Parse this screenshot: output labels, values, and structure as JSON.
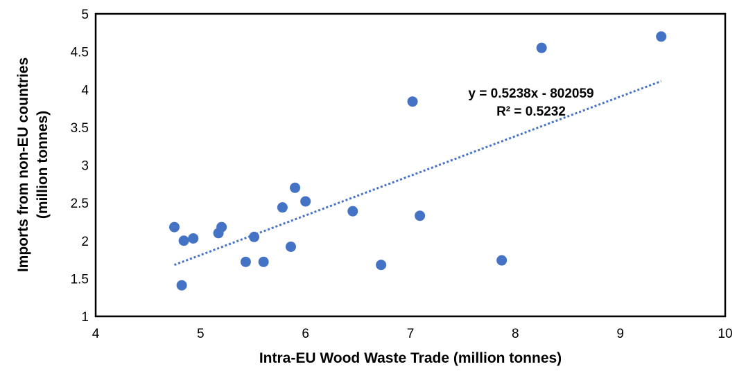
{
  "chart_data": {
    "type": "scatter",
    "title": "",
    "xlabel": "Intra-EU Wood Waste Trade (million tonnes)",
    "ylabel_line1": "Imports from non-EU countries",
    "ylabel_line2": "(million tonnes)",
    "xlim": [
      4,
      10
    ],
    "ylim": [
      1,
      5
    ],
    "xticks": [
      4,
      5,
      6,
      7,
      8,
      9,
      10
    ],
    "yticks": [
      1,
      1.5,
      2,
      2.5,
      3,
      3.5,
      4,
      4.5,
      5
    ],
    "xtick_labels": [
      "4",
      "5",
      "6",
      "7",
      "8",
      "9",
      "10"
    ],
    "ytick_labels": [
      "1",
      "1.5",
      "2",
      "2.5",
      "3",
      "3.5",
      "4",
      "4.5",
      "5"
    ],
    "grid": false,
    "legend": "none",
    "marker_color": "#4472C4",
    "trendline_color": "#4472C4",
    "points": [
      {
        "x": 4.75,
        "y": 2.18
      },
      {
        "x": 4.82,
        "y": 1.41
      },
      {
        "x": 4.84,
        "y": 2.0
      },
      {
        "x": 4.93,
        "y": 2.03
      },
      {
        "x": 5.17,
        "y": 2.1
      },
      {
        "x": 5.2,
        "y": 2.18
      },
      {
        "x": 5.43,
        "y": 1.72
      },
      {
        "x": 5.51,
        "y": 2.05
      },
      {
        "x": 5.6,
        "y": 1.72
      },
      {
        "x": 5.78,
        "y": 2.44
      },
      {
        "x": 5.86,
        "y": 1.92
      },
      {
        "x": 5.9,
        "y": 2.7
      },
      {
        "x": 6.0,
        "y": 2.52
      },
      {
        "x": 6.45,
        "y": 2.39
      },
      {
        "x": 6.72,
        "y": 1.68
      },
      {
        "x": 7.02,
        "y": 3.84
      },
      {
        "x": 7.09,
        "y": 2.33
      },
      {
        "x": 7.87,
        "y": 1.74
      },
      {
        "x": 8.25,
        "y": 4.55
      },
      {
        "x": 9.39,
        "y": 4.7
      }
    ],
    "trendline": {
      "type": "linear",
      "from": {
        "x": 4.75,
        "y": 1.68
      },
      "to": {
        "x": 9.39,
        "y": 4.11
      },
      "equation": "y = 0.5238x - 802059",
      "r_squared": "R² = 0.5232"
    }
  }
}
